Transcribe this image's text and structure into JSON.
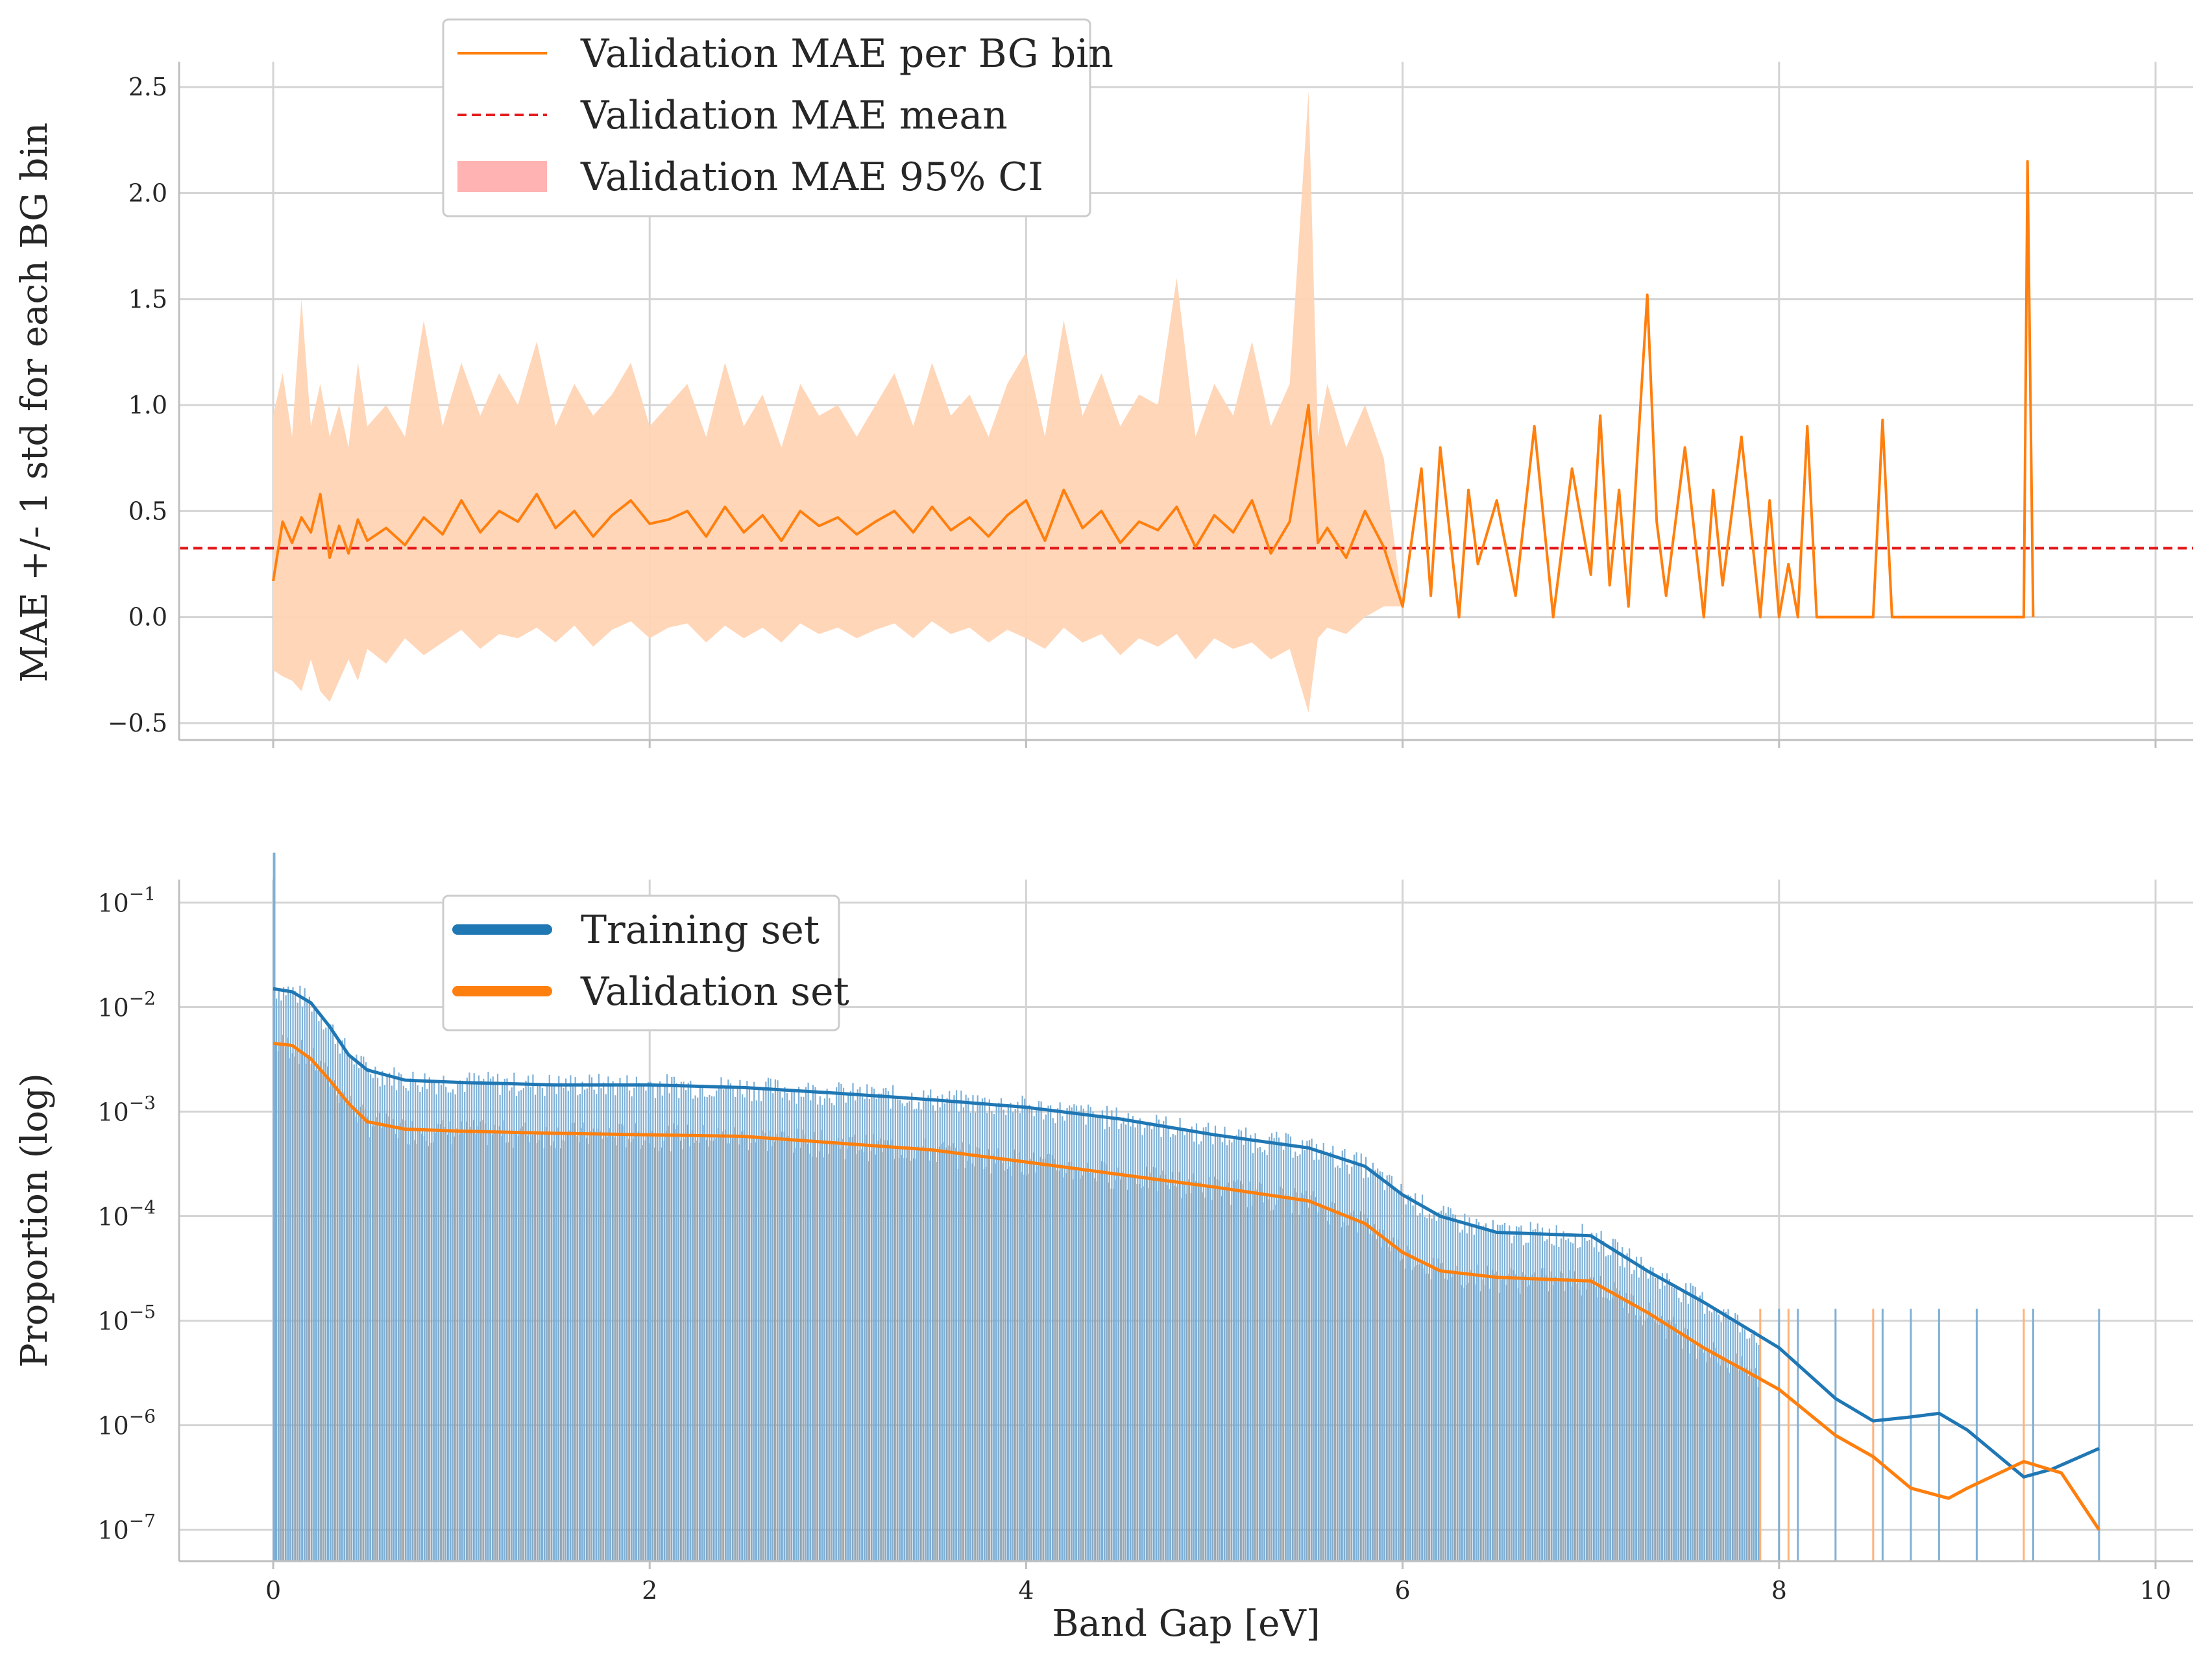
{
  "chart_data": [
    {
      "type": "line",
      "panel": "top",
      "ylabel": "MAE +/- 1 std for each BG bin",
      "xlabel": "",
      "xlim": [
        -0.5,
        10.2
      ],
      "ylim": [
        -0.58,
        2.62
      ],
      "x_ticks": [
        0,
        2,
        4,
        6,
        8,
        10
      ],
      "y_ticks": [
        {
          "value": -0.5,
          "label": "−0.5"
        },
        {
          "value": 0.0,
          "label": "0.0"
        },
        {
          "value": 0.5,
          "label": "0.5"
        },
        {
          "value": 1.0,
          "label": "1.0"
        },
        {
          "value": 1.5,
          "label": "1.5"
        },
        {
          "value": 2.0,
          "label": "2.0"
        },
        {
          "value": 2.5,
          "label": "2.5"
        }
      ],
      "legend": {
        "position": "top-left",
        "entries": [
          {
            "label": "Validation MAE per BG bin",
            "style": "line",
            "color": "#ff7f0e"
          },
          {
            "label": "Validation MAE mean",
            "style": "dashed",
            "color": "#e31a1c"
          },
          {
            "label": "Validation MAE 95% CI",
            "style": "patch",
            "color": "#ffb3b3"
          }
        ]
      },
      "mean_line": {
        "y": 0.325,
        "color": "#e31a1c"
      },
      "series": [
        {
          "name": "Validation MAE per BG bin",
          "color": "#ff7f0e",
          "band_color": "#ffd4b4",
          "x": [
            0.0,
            0.05,
            0.1,
            0.15,
            0.2,
            0.25,
            0.3,
            0.35,
            0.4,
            0.45,
            0.5,
            0.6,
            0.7,
            0.8,
            0.9,
            1.0,
            1.1,
            1.2,
            1.3,
            1.4,
            1.5,
            1.6,
            1.7,
            1.8,
            1.9,
            2.0,
            2.1,
            2.2,
            2.3,
            2.4,
            2.5,
            2.6,
            2.7,
            2.8,
            2.9,
            3.0,
            3.1,
            3.2,
            3.3,
            3.4,
            3.5,
            3.6,
            3.7,
            3.8,
            3.9,
            4.0,
            4.1,
            4.2,
            4.3,
            4.4,
            4.5,
            4.6,
            4.7,
            4.8,
            4.9,
            5.0,
            5.1,
            5.2,
            5.3,
            5.4,
            5.5,
            5.55,
            5.6,
            5.7,
            5.8,
            5.9,
            6.0,
            6.1,
            6.15,
            6.2,
            6.3,
            6.35,
            6.4,
            6.5,
            6.6,
            6.7,
            6.8,
            6.9,
            7.0,
            7.05,
            7.1,
            7.15,
            7.2,
            7.25,
            7.3,
            7.35,
            7.4,
            7.5,
            7.6,
            7.65,
            7.7,
            7.8,
            7.9,
            7.95,
            8.0,
            8.05,
            8.1,
            8.15,
            8.2,
            8.5,
            8.55,
            8.6,
            9.3,
            9.32,
            9.35
          ],
          "y": [
            0.17,
            0.45,
            0.35,
            0.47,
            0.4,
            0.58,
            0.28,
            0.43,
            0.3,
            0.46,
            0.36,
            0.42,
            0.34,
            0.47,
            0.39,
            0.55,
            0.4,
            0.5,
            0.45,
            0.58,
            0.42,
            0.5,
            0.38,
            0.48,
            0.55,
            0.44,
            0.46,
            0.5,
            0.38,
            0.52,
            0.4,
            0.48,
            0.36,
            0.5,
            0.43,
            0.47,
            0.39,
            0.45,
            0.5,
            0.4,
            0.52,
            0.41,
            0.47,
            0.38,
            0.48,
            0.55,
            0.36,
            0.6,
            0.42,
            0.5,
            0.35,
            0.45,
            0.41,
            0.52,
            0.33,
            0.48,
            0.4,
            0.55,
            0.3,
            0.45,
            1.0,
            0.35,
            0.42,
            0.28,
            0.5,
            0.33,
            0.05,
            0.7,
            0.1,
            0.8,
            0.0,
            0.6,
            0.25,
            0.55,
            0.1,
            0.9,
            0.0,
            0.7,
            0.2,
            0.95,
            0.15,
            0.6,
            0.05,
            0.8,
            1.52,
            0.45,
            0.1,
            0.8,
            0.0,
            0.6,
            0.15,
            0.85,
            0.0,
            0.55,
            0.0,
            0.25,
            0.0,
            0.9,
            0.0,
            0.0,
            0.93,
            0.0,
            0.0,
            2.15,
            0.0
          ],
          "band_lower": [
            -0.25,
            -0.28,
            -0.3,
            -0.35,
            -0.2,
            -0.35,
            -0.4,
            -0.3,
            -0.2,
            -0.3,
            -0.15,
            -0.22,
            -0.1,
            -0.18,
            -0.12,
            -0.06,
            -0.15,
            -0.08,
            -0.1,
            -0.05,
            -0.12,
            -0.04,
            -0.14,
            -0.06,
            -0.02,
            -0.1,
            -0.05,
            -0.03,
            -0.12,
            -0.04,
            -0.1,
            -0.05,
            -0.12,
            -0.03,
            -0.08,
            -0.05,
            -0.1,
            -0.06,
            -0.03,
            -0.1,
            -0.02,
            -0.08,
            -0.05,
            -0.12,
            -0.06,
            -0.1,
            -0.15,
            -0.05,
            -0.12,
            -0.08,
            -0.18,
            -0.1,
            -0.14,
            -0.08,
            -0.2,
            -0.1,
            -0.15,
            -0.12,
            -0.2,
            -0.15,
            -0.45,
            -0.1,
            -0.05,
            -0.08,
            0.0,
            0.05,
            0.05,
            0.7,
            0.1,
            0.8,
            0.0,
            0.6,
            0.25,
            0.55,
            0.1,
            0.9,
            0.0,
            0.7,
            0.2,
            0.95,
            0.15,
            0.6,
            0.05,
            0.8,
            1.52,
            0.45,
            0.1,
            0.8,
            0.0,
            0.6,
            0.15,
            0.85,
            0.0,
            0.55,
            0.0,
            0.25,
            0.0,
            0.9,
            0.0,
            0.0,
            0.93,
            0.0,
            0.0,
            2.15,
            0.0
          ],
          "band_upper": [
            0.95,
            1.15,
            0.85,
            1.5,
            0.9,
            1.1,
            0.85,
            1.0,
            0.8,
            1.2,
            0.9,
            1.0,
            0.85,
            1.4,
            0.9,
            1.2,
            0.95,
            1.15,
            1.0,
            1.3,
            0.9,
            1.1,
            0.95,
            1.05,
            1.2,
            0.9,
            1.0,
            1.1,
            0.85,
            1.2,
            0.9,
            1.05,
            0.8,
            1.1,
            0.95,
            1.0,
            0.85,
            1.0,
            1.15,
            0.9,
            1.2,
            0.95,
            1.05,
            0.85,
            1.1,
            1.25,
            0.85,
            1.4,
            0.95,
            1.15,
            0.9,
            1.05,
            1.0,
            1.6,
            0.85,
            1.1,
            0.95,
            1.3,
            0.9,
            1.1,
            2.48,
            0.85,
            1.1,
            0.8,
            1.0,
            0.75,
            0.05,
            0.7,
            0.1,
            0.8,
            0.0,
            0.6,
            0.25,
            0.55,
            0.1,
            0.9,
            0.0,
            0.7,
            0.2,
            0.95,
            0.15,
            0.6,
            0.05,
            0.8,
            1.52,
            0.45,
            0.1,
            0.8,
            0.0,
            0.6,
            0.15,
            0.85,
            0.0,
            0.55,
            0.0,
            0.25,
            0.0,
            0.9,
            0.0,
            0.0,
            0.93,
            0.0,
            0.0,
            2.15,
            0.0
          ]
        }
      ]
    },
    {
      "type": "line",
      "panel": "bottom",
      "yscale": "log",
      "xlabel": "Band Gap [eV]",
      "ylabel": "Proportion (log)",
      "xlim": [
        -0.5,
        10.2
      ],
      "ylim_log10": [
        -7.3,
        -0.78
      ],
      "x_ticks": [
        {
          "value": 0,
          "label": "0"
        },
        {
          "value": 2,
          "label": "2"
        },
        {
          "value": 4,
          "label": "4"
        },
        {
          "value": 6,
          "label": "6"
        },
        {
          "value": 8,
          "label": "8"
        },
        {
          "value": 10,
          "label": "10"
        }
      ],
      "y_ticks": [
        {
          "exp": -7,
          "base": "10",
          "sup": "−7"
        },
        {
          "exp": -6,
          "base": "10",
          "sup": "−6"
        },
        {
          "exp": -5,
          "base": "10",
          "sup": "−5"
        },
        {
          "exp": -4,
          "base": "10",
          "sup": "−4"
        },
        {
          "exp": -3,
          "base": "10",
          "sup": "−3"
        },
        {
          "exp": -2,
          "base": "10",
          "sup": "−2"
        },
        {
          "exp": -1,
          "base": "10",
          "sup": "−1"
        }
      ],
      "legend": {
        "position": "top-left",
        "entries": [
          {
            "label": "Training set",
            "color": "#1f77b4"
          },
          {
            "label": "Validation set",
            "color": "#ff7f0e"
          }
        ]
      },
      "series": [
        {
          "name": "Training set",
          "color": "#1f77b4",
          "x": [
            0.0,
            0.1,
            0.2,
            0.3,
            0.4,
            0.5,
            0.7,
            1.0,
            1.5,
            2.0,
            2.5,
            3.0,
            3.5,
            4.0,
            4.5,
            5.0,
            5.5,
            5.8,
            6.0,
            6.2,
            6.5,
            7.0,
            7.3,
            7.6,
            8.0,
            8.3,
            8.5,
            8.7,
            8.85,
            9.0,
            9.3,
            9.45,
            9.7
          ],
          "y": [
            0.015,
            0.014,
            0.011,
            0.0065,
            0.0035,
            0.0025,
            0.002,
            0.0019,
            0.0018,
            0.0018,
            0.0017,
            0.0015,
            0.0013,
            0.0011,
            0.00085,
            0.0006,
            0.00045,
            0.0003,
            0.00016,
            0.0001,
            7e-05,
            6.5e-05,
            3e-05,
            1.5e-05,
            5.5e-06,
            1.8e-06,
            1.1e-06,
            1.2e-06,
            1.3e-06,
            9e-07,
            3.2e-07,
            3.8e-07,
            6e-07
          ]
        },
        {
          "name": "Validation set",
          "color": "#ff7f0e",
          "x": [
            0.0,
            0.1,
            0.2,
            0.3,
            0.4,
            0.5,
            0.7,
            1.0,
            1.5,
            2.0,
            2.5,
            3.0,
            3.5,
            4.0,
            4.5,
            5.0,
            5.5,
            5.8,
            6.0,
            6.2,
            6.5,
            7.0,
            7.3,
            7.6,
            8.0,
            8.3,
            8.5,
            8.7,
            8.9,
            9.0,
            9.3,
            9.5,
            9.7
          ],
          "y": [
            0.0045,
            0.0043,
            0.0032,
            0.002,
            0.0012,
            0.0008,
            0.00068,
            0.00065,
            0.00062,
            0.0006,
            0.00058,
            0.0005,
            0.00043,
            0.00033,
            0.00025,
            0.00019,
            0.00014,
            8.5e-05,
            4.5e-05,
            3e-05,
            2.6e-05,
            2.4e-05,
            1.2e-05,
            5.5e-06,
            2.2e-06,
            8e-07,
            5e-07,
            2.5e-07,
            2e-07,
            2.5e-07,
            4.5e-07,
            3.5e-07,
            1e-07
          ]
        }
      ],
      "histogram_note": "dense per-bin bars (0–9.7 eV) for training and validation proportions"
    }
  ]
}
